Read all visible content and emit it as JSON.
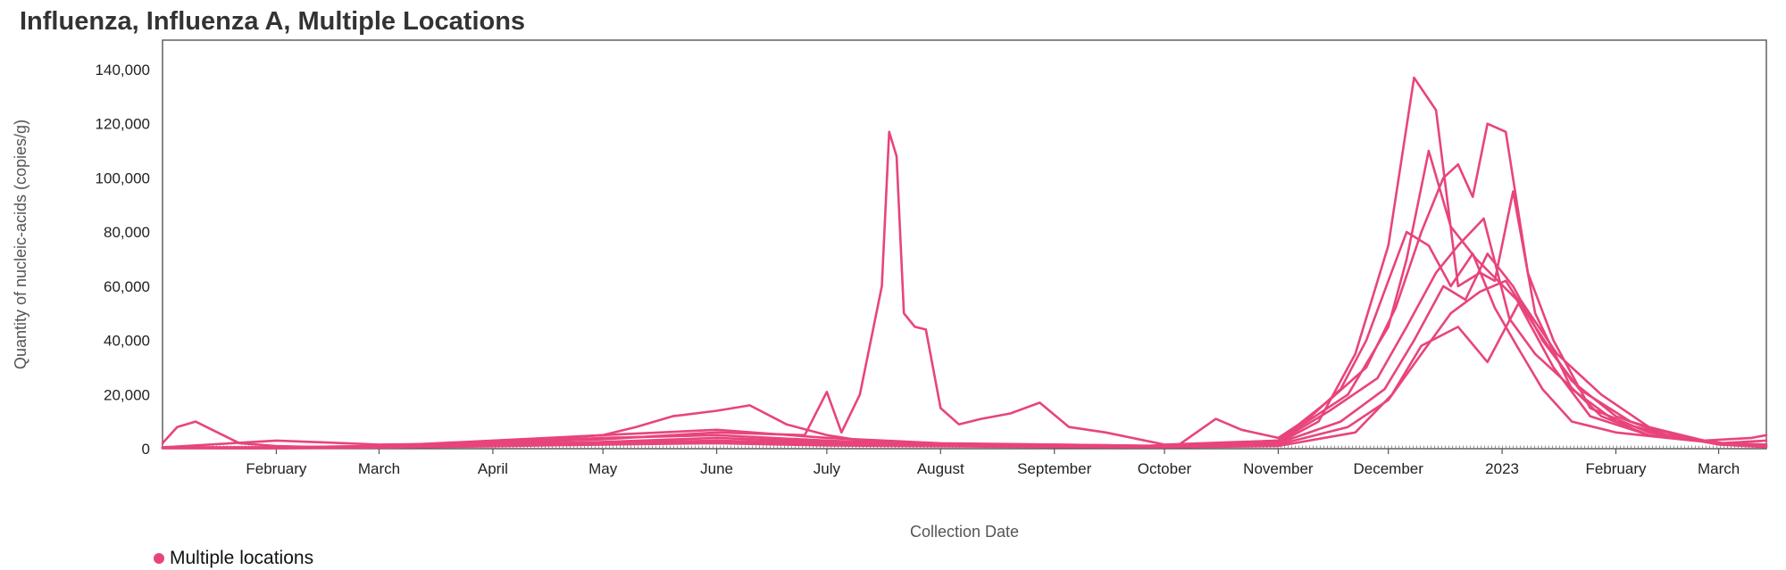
{
  "chart_data": {
    "type": "line",
    "title": "Influenza, Influenza A, Multiple Locations",
    "xlabel": "Collection Date",
    "ylabel": "Quantity of nucleic-acids (copies/g)",
    "ylim": [
      0,
      150000
    ],
    "xlim": [
      "2022-01-01",
      "2023-03-14"
    ],
    "grid": false,
    "color": "#e8447c",
    "y_ticks": [
      {
        "v": 0,
        "label": "0"
      },
      {
        "v": 20000,
        "label": "20,000"
      },
      {
        "v": 40000,
        "label": "40,000"
      },
      {
        "v": 60000,
        "label": "60,000"
      },
      {
        "v": 80000,
        "label": "80,000"
      },
      {
        "v": 100000,
        "label": "100,000"
      },
      {
        "v": 120000,
        "label": "120,000"
      },
      {
        "v": 140000,
        "label": "140,000"
      }
    ],
    "x_ticks": [
      {
        "date": "2022-02-01",
        "label": "February"
      },
      {
        "date": "2022-03-01",
        "label": "March"
      },
      {
        "date": "2022-04-01",
        "label": "April"
      },
      {
        "date": "2022-05-01",
        "label": "May"
      },
      {
        "date": "2022-06-01",
        "label": "June"
      },
      {
        "date": "2022-07-01",
        "label": "July"
      },
      {
        "date": "2022-08-01",
        "label": "August"
      },
      {
        "date": "2022-09-01",
        "label": "September"
      },
      {
        "date": "2022-10-01",
        "label": "October"
      },
      {
        "date": "2022-11-01",
        "label": "November"
      },
      {
        "date": "2022-12-01",
        "label": "December"
      },
      {
        "date": "2023-01-01",
        "label": "2023"
      },
      {
        "date": "2023-02-01",
        "label": "February"
      },
      {
        "date": "2023-03-01",
        "label": "March"
      }
    ],
    "legend": {
      "label": "Multiple locations",
      "position": "bottom-left"
    },
    "series": [
      {
        "x": [
          "2022-01-01",
          "2022-01-05",
          "2022-01-10",
          "2022-01-16",
          "2022-01-22",
          "2022-02-01",
          "2022-02-15",
          "2022-03-01",
          "2022-03-20",
          "2022-04-01",
          "2022-04-15",
          "2022-05-01",
          "2022-05-10",
          "2022-05-20",
          "2022-06-01",
          "2022-06-10",
          "2022-06-20",
          "2022-07-01",
          "2022-07-15",
          "2022-08-01",
          "2022-08-15",
          "2022-09-01",
          "2022-09-20",
          "2022-10-05",
          "2022-10-15",
          "2022-10-22",
          "2022-11-01",
          "2022-11-10",
          "2022-11-18",
          "2022-11-25",
          "2022-12-01",
          "2022-12-06",
          "2022-12-12",
          "2022-12-18",
          "2022-12-24",
          "2022-12-30",
          "2023-01-05",
          "2023-01-12",
          "2023-01-20",
          "2023-02-01",
          "2023-02-15",
          "2023-03-01",
          "2023-03-14"
        ],
        "y": [
          2000,
          8000,
          10000,
          6000,
          2000,
          1000,
          500,
          1000,
          1500,
          2500,
          3500,
          5000,
          8000,
          12000,
          14000,
          16000,
          9000,
          5000,
          2000,
          1500,
          1000,
          1000,
          800,
          1500,
          11000,
          7000,
          4000,
          12000,
          22000,
          40000,
          62000,
          80000,
          75000,
          60000,
          72000,
          52000,
          38000,
          22000,
          10000,
          6000,
          4000,
          2000,
          3000
        ]
      },
      {
        "x": [
          "2022-01-01",
          "2022-02-01",
          "2022-03-01",
          "2022-04-01",
          "2022-05-01",
          "2022-06-01",
          "2022-06-25",
          "2022-07-01",
          "2022-07-05",
          "2022-07-10",
          "2022-07-13",
          "2022-07-16",
          "2022-07-18",
          "2022-07-20",
          "2022-07-22",
          "2022-07-25",
          "2022-07-28",
          "2022-08-01",
          "2022-08-06",
          "2022-08-12",
          "2022-08-20",
          "2022-08-28",
          "2022-09-05",
          "2022-09-15",
          "2022-10-01",
          "2022-11-01",
          "2022-11-20",
          "2022-12-01",
          "2022-12-06",
          "2022-12-12",
          "2022-12-18",
          "2022-12-25",
          "2023-01-05",
          "2023-01-15",
          "2023-01-25",
          "2023-02-10",
          "2023-03-01",
          "2023-03-14"
        ],
        "y": [
          500,
          500,
          1000,
          2000,
          3500,
          6000,
          5000,
          21000,
          6000,
          20000,
          40000,
          60000,
          117000,
          108000,
          50000,
          45000,
          44000,
          15000,
          9000,
          11000,
          13000,
          17000,
          8000,
          6000,
          1500,
          3000,
          20000,
          45000,
          70000,
          110000,
          82000,
          70000,
          55000,
          30000,
          12000,
          5000,
          2000,
          1500
        ]
      },
      {
        "x": [
          "2022-01-01",
          "2022-02-01",
          "2022-03-01",
          "2022-04-01",
          "2022-05-01",
          "2022-06-01",
          "2022-07-01",
          "2022-08-01",
          "2022-09-01",
          "2022-10-01",
          "2022-11-01",
          "2022-11-12",
          "2022-11-22",
          "2022-12-01",
          "2022-12-08",
          "2022-12-14",
          "2022-12-20",
          "2022-12-26",
          "2022-12-30",
          "2023-01-04",
          "2023-01-10",
          "2023-01-20",
          "2023-02-01",
          "2023-02-15",
          "2023-03-01",
          "2023-03-14"
        ],
        "y": [
          500,
          3000,
          1500,
          2000,
          4000,
          5000,
          3000,
          1500,
          1500,
          1000,
          2000,
          10000,
          35000,
          75000,
          137000,
          125000,
          60000,
          65000,
          62000,
          95000,
          50000,
          22000,
          10000,
          5000,
          2000,
          1500
        ]
      },
      {
        "x": [
          "2022-01-01",
          "2022-02-01",
          "2022-03-01",
          "2022-04-01",
          "2022-05-01",
          "2022-06-01",
          "2022-07-01",
          "2022-08-01",
          "2022-09-01",
          "2022-10-01",
          "2022-11-01",
          "2022-11-15",
          "2022-11-25",
          "2022-12-03",
          "2022-12-10",
          "2022-12-16",
          "2022-12-20",
          "2022-12-24",
          "2022-12-28",
          "2023-01-02",
          "2023-01-08",
          "2023-01-15",
          "2023-01-25",
          "2023-02-10",
          "2023-03-01",
          "2023-03-14"
        ],
        "y": [
          500,
          500,
          1000,
          3000,
          5000,
          7000,
          4000,
          2000,
          1500,
          1000,
          3000,
          18000,
          30000,
          52000,
          80000,
          100000,
          105000,
          93000,
          120000,
          117000,
          65000,
          40000,
          15000,
          6000,
          2000,
          1500
        ]
      },
      {
        "x": [
          "2022-01-01",
          "2022-02-01",
          "2022-03-01",
          "2022-04-01",
          "2022-05-01",
          "2022-06-01",
          "2022-07-01",
          "2022-08-01",
          "2022-09-01",
          "2022-10-01",
          "2022-11-01",
          "2022-11-15",
          "2022-11-28",
          "2022-12-06",
          "2022-12-14",
          "2022-12-20",
          "2022-12-27",
          "2023-01-03",
          "2023-01-10",
          "2023-01-18",
          "2023-01-28",
          "2023-02-10",
          "2023-03-01",
          "2023-03-14"
        ],
        "y": [
          300,
          500,
          800,
          1500,
          2500,
          4000,
          2500,
          1500,
          1000,
          800,
          2500,
          14000,
          26000,
          45000,
          65000,
          75000,
          85000,
          48000,
          35000,
          25000,
          12000,
          5000,
          2000,
          1000
        ]
      },
      {
        "x": [
          "2022-01-01",
          "2022-02-01",
          "2022-03-01",
          "2022-04-01",
          "2022-05-01",
          "2022-06-01",
          "2022-07-01",
          "2022-08-01",
          "2022-09-01",
          "2022-10-01",
          "2022-11-01",
          "2022-11-18",
          "2022-11-30",
          "2022-12-08",
          "2022-12-16",
          "2022-12-22",
          "2022-12-28",
          "2023-01-04",
          "2023-01-12",
          "2023-01-22",
          "2023-02-05",
          "2023-02-20",
          "2023-03-05",
          "2023-03-14"
        ],
        "y": [
          400,
          300,
          600,
          1200,
          2000,
          3000,
          2000,
          1200,
          900,
          700,
          2000,
          10000,
          22000,
          40000,
          60000,
          55000,
          72000,
          60000,
          40000,
          22000,
          10000,
          4000,
          1500,
          800
        ]
      },
      {
        "x": [
          "2022-01-01",
          "2022-02-01",
          "2022-03-01",
          "2022-04-01",
          "2022-05-01",
          "2022-06-01",
          "2022-07-01",
          "2022-08-01",
          "2022-09-01",
          "2022-10-01",
          "2022-11-01",
          "2022-11-20",
          "2022-12-01",
          "2022-12-10",
          "2022-12-18",
          "2022-12-26",
          "2023-01-02",
          "2023-01-10",
          "2023-01-20",
          "2023-02-01",
          "2023-02-15",
          "2023-03-01",
          "2023-03-14"
        ],
        "y": [
          200,
          200,
          500,
          1000,
          1800,
          2500,
          1500,
          1000,
          700,
          600,
          1500,
          8000,
          18000,
          35000,
          50000,
          58000,
          62000,
          45000,
          25000,
          12000,
          5000,
          1500,
          600
        ]
      },
      {
        "x": [
          "2022-01-01",
          "2022-02-01",
          "2022-03-01",
          "2022-04-01",
          "2022-05-01",
          "2022-06-01",
          "2022-07-01",
          "2022-08-01",
          "2022-09-01",
          "2022-10-01",
          "2022-11-01",
          "2022-11-22",
          "2022-12-02",
          "2022-12-10",
          "2022-12-20",
          "2022-12-28",
          "2023-01-06",
          "2023-01-16",
          "2023-01-28",
          "2023-02-10",
          "2023-02-25",
          "2023-03-10",
          "2023-03-14"
        ],
        "y": [
          300,
          200,
          400,
          900,
          1500,
          2000,
          1200,
          900,
          600,
          500,
          1000,
          6000,
          20000,
          38000,
          45000,
          32000,
          55000,
          35000,
          20000,
          8000,
          3000,
          4000,
          5000
        ]
      }
    ]
  }
}
